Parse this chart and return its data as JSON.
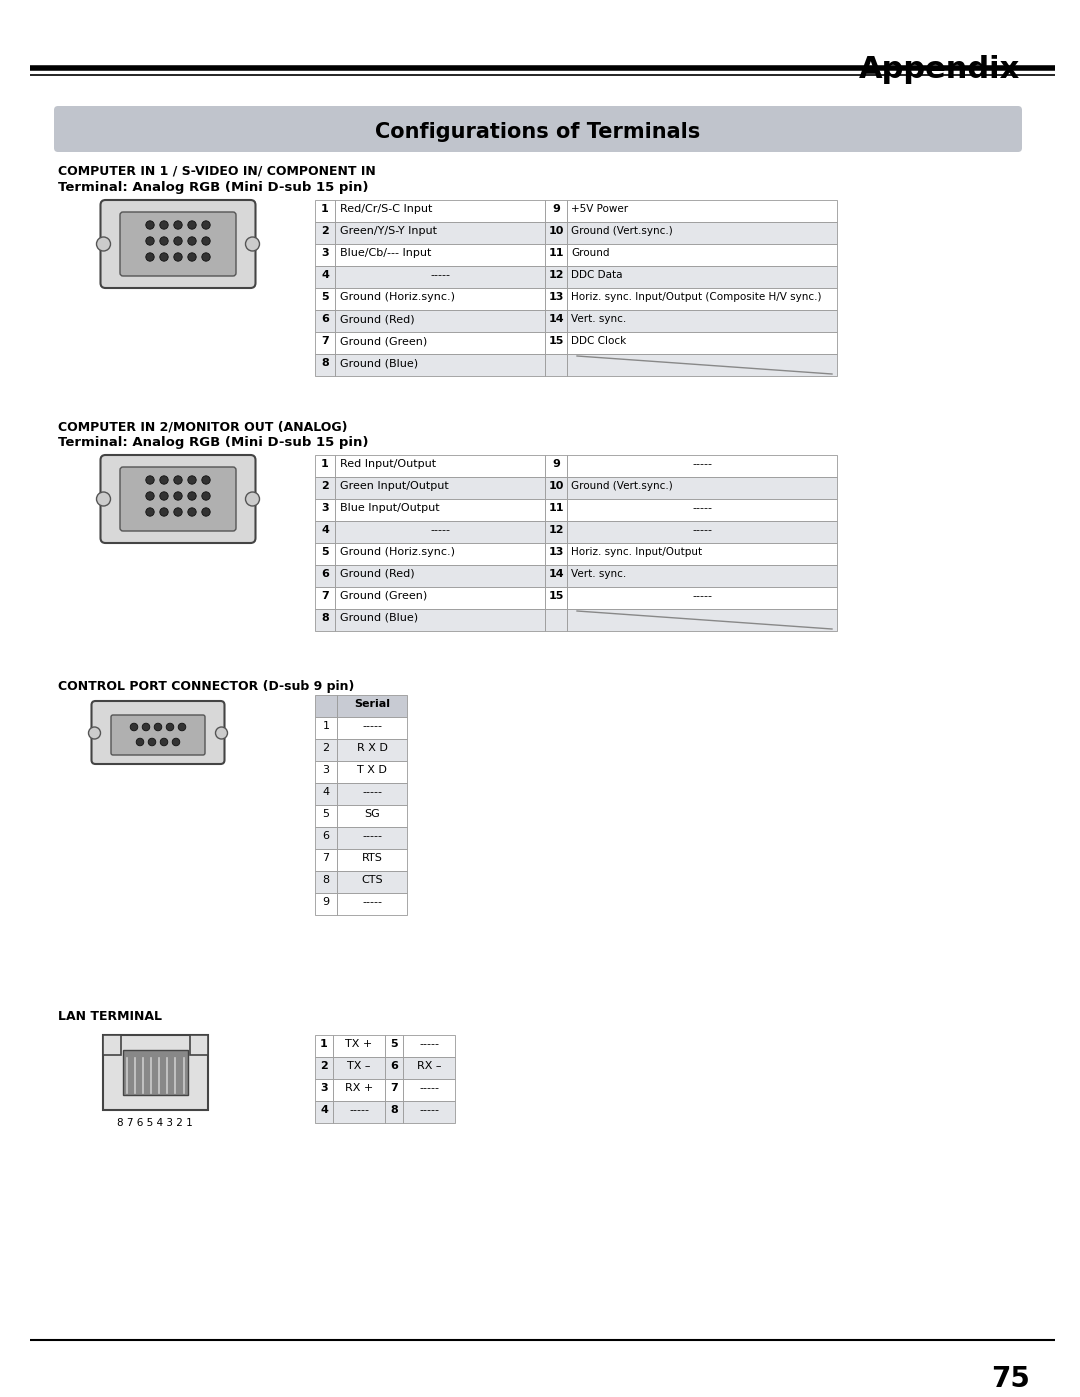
{
  "page_bg": "#ffffff",
  "appendix_label": "Appendix",
  "main_title": "Configurations of Terminals",
  "main_title_bg": "#c0c4cc",
  "section1_title": "COMPUTER IN 1 / S-VIDEO IN/ COMPONENT IN",
  "section1_subtitle": "Terminal: Analog RGB (Mini D-sub 15 pin)",
  "table1_left": [
    [
      "1",
      "Red/Cr/S-C Input"
    ],
    [
      "2",
      "Green/Y/S-Y Input"
    ],
    [
      "3",
      "Blue/Cb/--- Input"
    ],
    [
      "4",
      "-----"
    ],
    [
      "5",
      "Ground (Horiz.sync.)"
    ],
    [
      "6",
      "Ground (Red)"
    ],
    [
      "7",
      "Ground (Green)"
    ],
    [
      "8",
      "Ground (Blue)"
    ]
  ],
  "table1_right": [
    [
      "9",
      "+5V Power"
    ],
    [
      "10",
      "Ground (Vert.sync.)"
    ],
    [
      "11",
      "Ground"
    ],
    [
      "12",
      "DDC Data"
    ],
    [
      "13",
      "Horiz. sync. Input/Output (Composite H/V sync.)"
    ],
    [
      "14",
      "Vert. sync."
    ],
    [
      "15",
      "DDC Clock"
    ],
    [
      "",
      ""
    ]
  ],
  "section2_title": "COMPUTER IN 2/MONITOR OUT (ANALOG)",
  "section2_subtitle": "Terminal: Analog RGB (Mini D-sub 15 pin)",
  "table2_left": [
    [
      "1",
      "Red Input/Output"
    ],
    [
      "2",
      "Green Input/Output"
    ],
    [
      "3",
      "Blue Input/Output"
    ],
    [
      "4",
      "-----"
    ],
    [
      "5",
      "Ground (Horiz.sync.)"
    ],
    [
      "6",
      "Ground (Red)"
    ],
    [
      "7",
      "Ground (Green)"
    ],
    [
      "8",
      "Ground (Blue)"
    ]
  ],
  "table2_right": [
    [
      "9",
      "-----"
    ],
    [
      "10",
      "Ground (Vert.sync.)"
    ],
    [
      "11",
      "-----"
    ],
    [
      "12",
      "-----"
    ],
    [
      "13",
      "Horiz. sync. Input/Output"
    ],
    [
      "14",
      "Vert. sync."
    ],
    [
      "15",
      "-----"
    ],
    [
      "",
      ""
    ]
  ],
  "section3_title": "CONTROL PORT CONNECTOR (D-sub 9 pin)",
  "table3": [
    [
      "",
      "Serial"
    ],
    [
      "1",
      "-----"
    ],
    [
      "2",
      "R X D"
    ],
    [
      "3",
      "T X D"
    ],
    [
      "4",
      "-----"
    ],
    [
      "5",
      "SG"
    ],
    [
      "6",
      "-----"
    ],
    [
      "7",
      "RTS"
    ],
    [
      "8",
      "CTS"
    ],
    [
      "9",
      "-----"
    ]
  ],
  "section4_title": "LAN TERMINAL",
  "table4_left": [
    [
      "1",
      "TX +"
    ],
    [
      "2",
      "TX –"
    ],
    [
      "3",
      "RX +"
    ],
    [
      "4",
      "-----"
    ]
  ],
  "table4_right": [
    [
      "5",
      "-----"
    ],
    [
      "6",
      "RX –"
    ],
    [
      "7",
      "-----"
    ],
    [
      "8",
      "-----"
    ]
  ],
  "page_number": "75",
  "table_header_bg": "#c8cbd3",
  "table_row_bg_even": "#e4e6ea",
  "table_row_bg_odd": "#ffffff",
  "table_border": "#999999",
  "text_color": "#000000"
}
